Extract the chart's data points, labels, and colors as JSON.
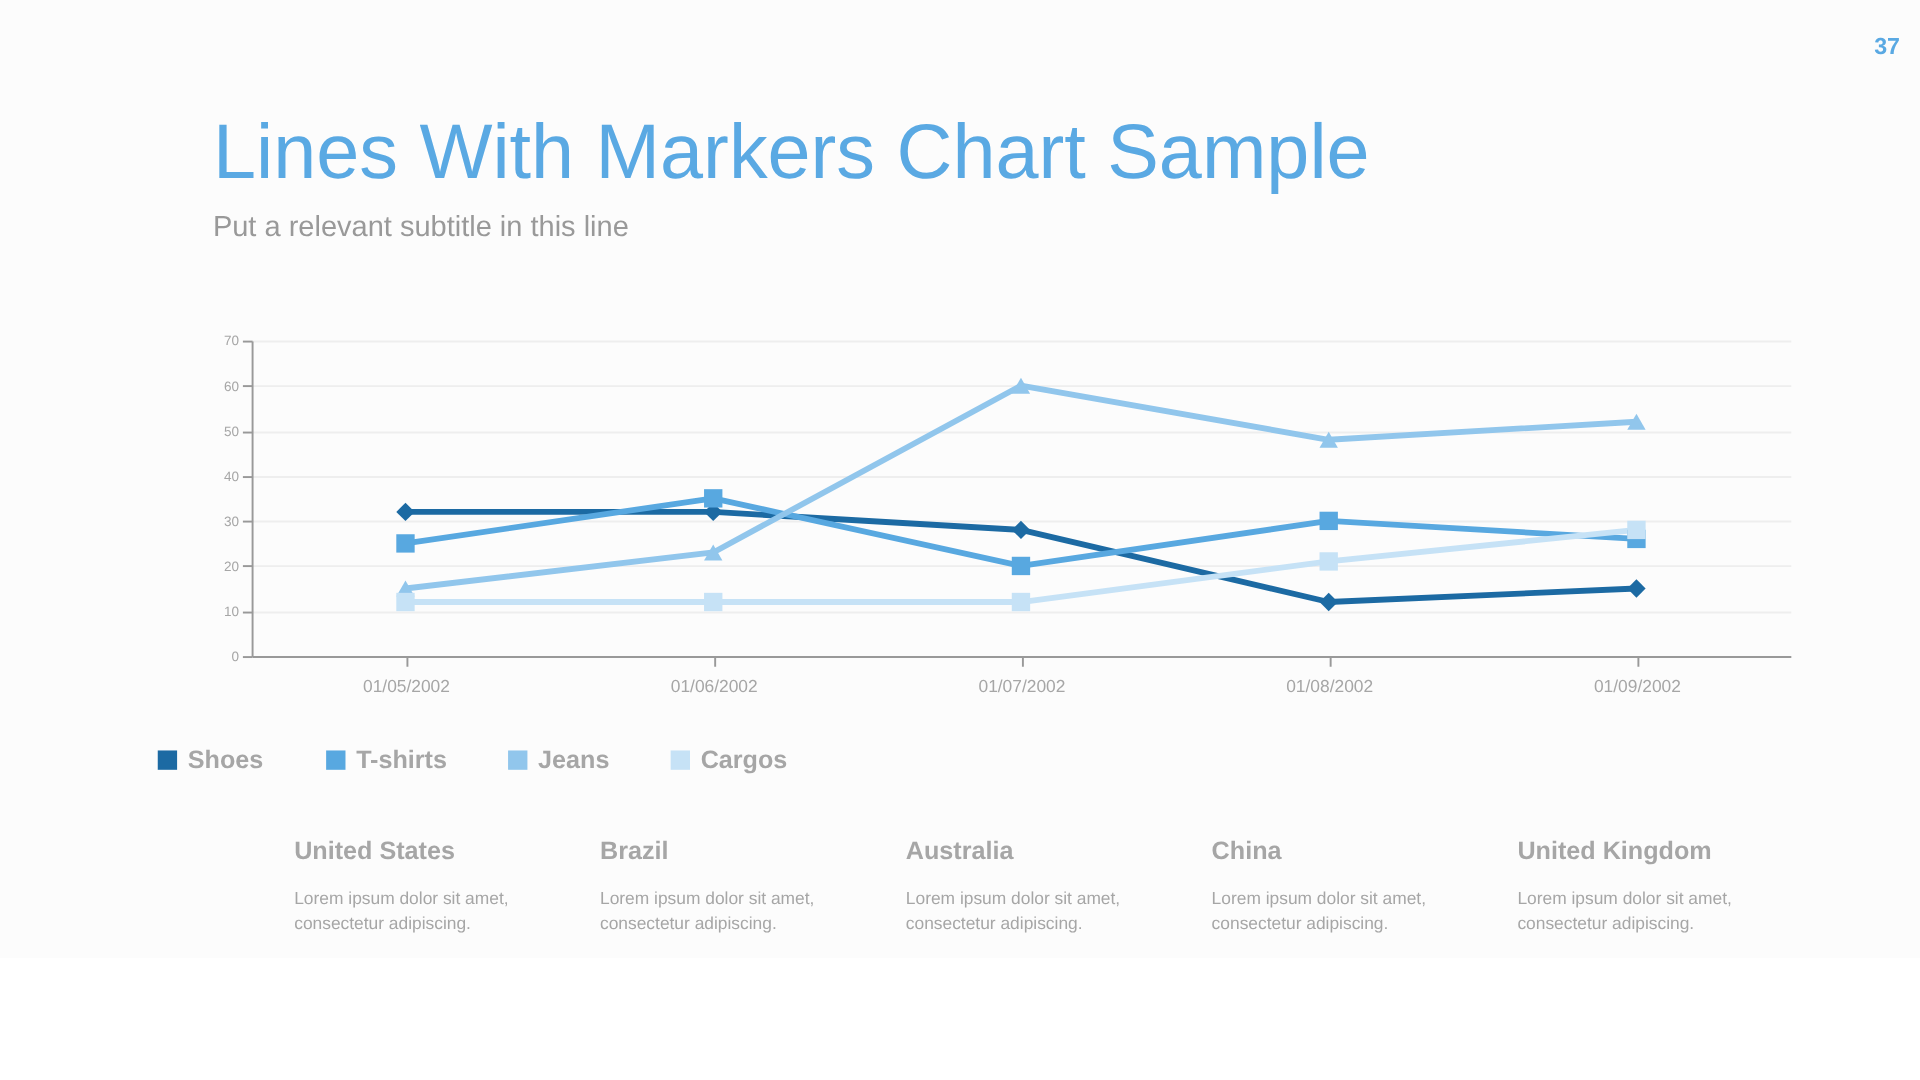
{
  "chart_data": {
    "type": "line",
    "title": "Lines With Markers Chart Sample",
    "subtitle": "Put a relevant subtitle in this line",
    "categories": [
      "01/05/2002",
      "01/06/2002",
      "01/07/2002",
      "01/08/2002",
      "01/09/2002"
    ],
    "series": [
      {
        "name": "Shoes",
        "color": "#1c6aa3",
        "marker": "diamond",
        "values": [
          32,
          32,
          28,
          12,
          15
        ]
      },
      {
        "name": "T-shirts",
        "color": "#58a8e0",
        "marker": "square",
        "values": [
          25,
          35,
          20,
          30,
          26
        ]
      },
      {
        "name": "Jeans",
        "color": "#91c6ec",
        "marker": "triangle",
        "values": [
          15,
          23,
          60,
          48,
          52
        ]
      },
      {
        "name": "Cargos",
        "color": "#c6e2f6",
        "marker": "square",
        "values": [
          12,
          12,
          12,
          21,
          28
        ]
      }
    ],
    "ylim": [
      0,
      70
    ],
    "yticks": [
      0,
      10,
      20,
      30,
      40,
      50,
      60,
      70
    ],
    "grid": "y",
    "legend": "bottom left",
    "line_style": "solid",
    "annotations": [
      "37",
      "United States",
      "Lorem ipsum dolor sit amet,\nconsectetur adipiscing.",
      "Brazil",
      "Lorem ipsum dolor sit amet,\nconsectetur adipiscing.",
      "Australia",
      "Lorem ipsum dolor sit amet,\nconsectetur adipiscing.",
      "China",
      "Lorem ipsum dolor sit amet,\nconsectetur adipiscing.",
      "United Kingdom",
      "Lorem ipsum dolor sit amet,\nconsectetur adipiscing."
    ]
  }
}
